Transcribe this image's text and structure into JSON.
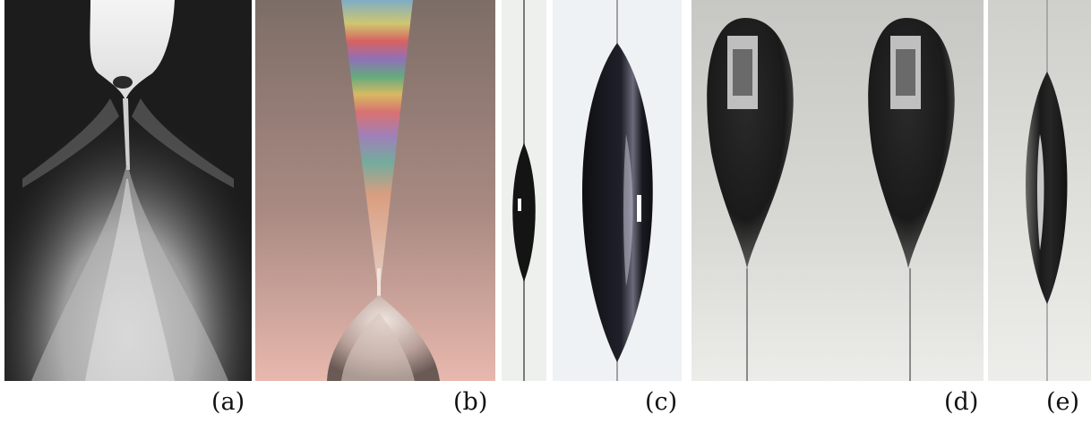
{
  "figure": {
    "labels": {
      "a": "(a)",
      "b": "(b)",
      "c": "(c)",
      "d": "(d)",
      "e": "(e)"
    }
  }
}
